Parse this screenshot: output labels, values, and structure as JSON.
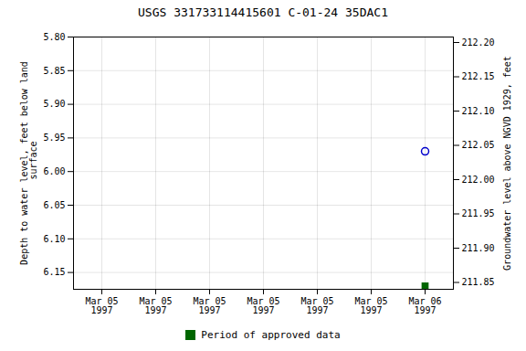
{
  "chart_data": {
    "type": "scatter",
    "title": "USGS 331733114415601 C-01-24 35DAC1",
    "y_label": "Depth to water level, feet below land\n surface",
    "y2_label": "Groundwater level above NGVD 1929, feet",
    "categories": [
      "Mar 05\n1997",
      "Mar 05\n1997",
      "Mar 05\n1997",
      "Mar 05\n1997",
      "Mar 05\n1997",
      "Mar 05\n1997",
      "Mar 06\n1997"
    ],
    "series": [
      {
        "color": "#0000cc",
        "marker": "circle",
        "values": [
          null,
          null,
          null,
          null,
          null,
          null,
          5.97
        ]
      },
      {
        "name": "Period of approved data",
        "color": "#006600",
        "marker": "square",
        "values": [
          null,
          null,
          null,
          null,
          null,
          null,
          6.17
        ]
      }
    ],
    "ylim": [
      6.175,
      5.8
    ],
    "yticks": [
      {
        "value": 5.8,
        "label": "5.80"
      },
      {
        "value": 5.85,
        "label": "5.85"
      },
      {
        "value": 5.9,
        "label": "5.90"
      },
      {
        "value": 5.95,
        "label": "5.95"
      },
      {
        "value": 6.0,
        "label": "6.00"
      },
      {
        "value": 6.05,
        "label": "6.05"
      },
      {
        "value": 6.1,
        "label": "6.10"
      },
      {
        "value": 6.15,
        "label": "6.15"
      }
    ],
    "y2lim": [
      211.84,
      212.208
    ],
    "y2ticks": [
      {
        "value": 212.2,
        "label": "212.20"
      },
      {
        "value": 212.15,
        "label": "212.15"
      },
      {
        "value": 212.1,
        "label": "212.10"
      },
      {
        "value": 212.05,
        "label": "212.05"
      },
      {
        "value": 212.0,
        "label": "212.00"
      },
      {
        "value": 211.95,
        "label": "211.95"
      },
      {
        "value": 211.9,
        "label": "211.90"
      },
      {
        "value": 211.85,
        "label": "211.85"
      }
    ],
    "grid": true,
    "legend": "bottom"
  }
}
